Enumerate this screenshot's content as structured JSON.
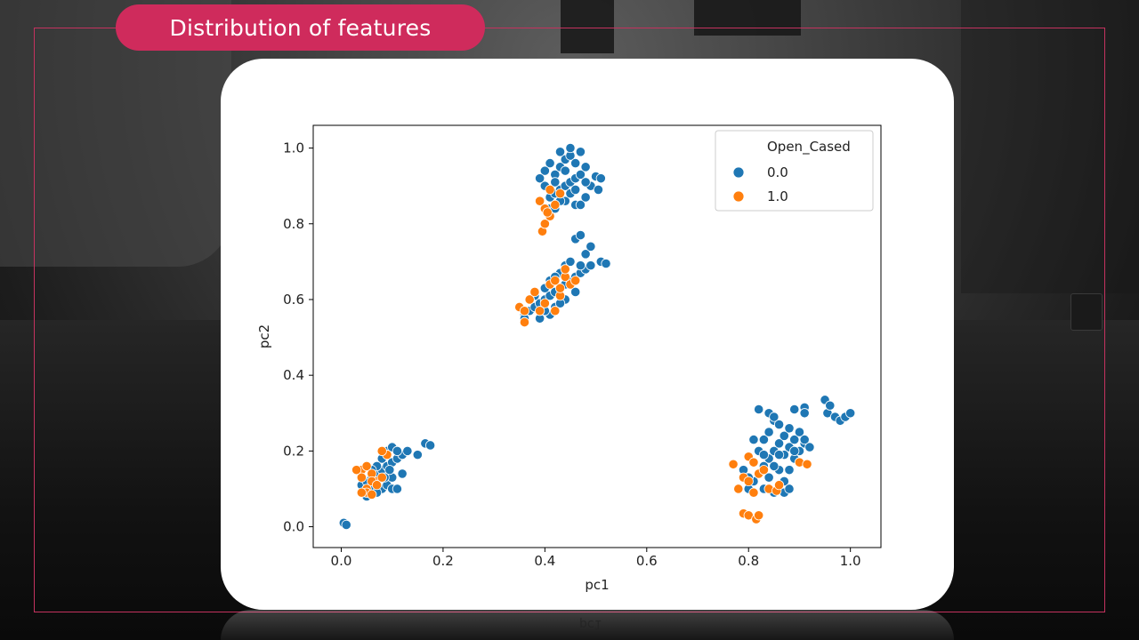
{
  "header": {
    "title": "Distribution of features"
  },
  "chart_data": {
    "type": "scatter",
    "xlabel": "pc1",
    "ylabel": "pc2",
    "xlim": [
      -0.055,
      1.06
    ],
    "ylim": [
      -0.055,
      1.06
    ],
    "xticks": [
      "0.0",
      "0.2",
      "0.4",
      "0.6",
      "0.8",
      "1.0"
    ],
    "yticks": [
      "0.0",
      "0.2",
      "0.4",
      "0.6",
      "0.8",
      "1.0"
    ],
    "legend": {
      "title": "Open_Cased",
      "position": "top-right"
    },
    "series": [
      {
        "name": "0.0",
        "color": "#1f77b4",
        "points": [
          [
            0.005,
            0.01
          ],
          [
            0.01,
            0.005
          ],
          [
            0.04,
            0.11
          ],
          [
            0.05,
            0.12
          ],
          [
            0.06,
            0.13
          ],
          [
            0.07,
            0.14
          ],
          [
            0.08,
            0.15
          ],
          [
            0.09,
            0.16
          ],
          [
            0.1,
            0.17
          ],
          [
            0.11,
            0.18
          ],
          [
            0.12,
            0.19
          ],
          [
            0.09,
            0.2
          ],
          [
            0.1,
            0.21
          ],
          [
            0.11,
            0.2
          ],
          [
            0.08,
            0.18
          ],
          [
            0.07,
            0.16
          ],
          [
            0.06,
            0.1
          ],
          [
            0.08,
            0.1
          ],
          [
            0.09,
            0.11
          ],
          [
            0.1,
            0.1
          ],
          [
            0.11,
            0.1
          ],
          [
            0.05,
            0.08
          ],
          [
            0.07,
            0.09
          ],
          [
            0.12,
            0.14
          ],
          [
            0.13,
            0.2
          ],
          [
            0.15,
            0.19
          ],
          [
            0.165,
            0.22
          ],
          [
            0.175,
            0.215
          ],
          [
            0.1,
            0.13
          ],
          [
            0.06,
            0.15
          ],
          [
            0.085,
            0.13
          ],
          [
            0.095,
            0.15
          ],
          [
            0.36,
            0.56
          ],
          [
            0.37,
            0.57
          ],
          [
            0.38,
            0.58
          ],
          [
            0.39,
            0.59
          ],
          [
            0.4,
            0.6
          ],
          [
            0.41,
            0.61
          ],
          [
            0.42,
            0.62
          ],
          [
            0.43,
            0.63
          ],
          [
            0.44,
            0.64
          ],
          [
            0.45,
            0.65
          ],
          [
            0.46,
            0.66
          ],
          [
            0.47,
            0.67
          ],
          [
            0.48,
            0.68
          ],
          [
            0.39,
            0.55
          ],
          [
            0.41,
            0.56
          ],
          [
            0.42,
            0.58
          ],
          [
            0.4,
            0.63
          ],
          [
            0.41,
            0.65
          ],
          [
            0.43,
            0.67
          ],
          [
            0.44,
            0.69
          ],
          [
            0.45,
            0.7
          ],
          [
            0.47,
            0.69
          ],
          [
            0.38,
            0.61
          ],
          [
            0.36,
            0.55
          ],
          [
            0.42,
            0.66
          ],
          [
            0.44,
            0.6
          ],
          [
            0.46,
            0.62
          ],
          [
            0.43,
            0.59
          ],
          [
            0.4,
            0.57
          ],
          [
            0.37,
            0.6
          ],
          [
            0.46,
            0.76
          ],
          [
            0.47,
            0.77
          ],
          [
            0.48,
            0.72
          ],
          [
            0.49,
            0.74
          ],
          [
            0.51,
            0.7
          ],
          [
            0.52,
            0.695
          ],
          [
            0.49,
            0.69
          ],
          [
            0.41,
            0.87
          ],
          [
            0.42,
            0.88
          ],
          [
            0.43,
            0.89
          ],
          [
            0.44,
            0.9
          ],
          [
            0.45,
            0.91
          ],
          [
            0.46,
            0.92
          ],
          [
            0.47,
            0.93
          ],
          [
            0.42,
            0.93
          ],
          [
            0.43,
            0.95
          ],
          [
            0.44,
            0.97
          ],
          [
            0.45,
            0.98
          ],
          [
            0.46,
            0.96
          ],
          [
            0.47,
            0.99
          ],
          [
            0.43,
            0.99
          ],
          [
            0.45,
            1.0
          ],
          [
            0.44,
            0.86
          ],
          [
            0.46,
            0.85
          ],
          [
            0.47,
            0.85
          ],
          [
            0.48,
            0.87
          ],
          [
            0.49,
            0.9
          ],
          [
            0.5,
            0.925
          ],
          [
            0.51,
            0.92
          ],
          [
            0.505,
            0.89
          ],
          [
            0.48,
            0.95
          ],
          [
            0.4,
            0.9
          ],
          [
            0.41,
            0.84
          ],
          [
            0.44,
            0.94
          ],
          [
            0.42,
            0.91
          ],
          [
            0.45,
            0.88
          ],
          [
            0.46,
            0.89
          ],
          [
            0.48,
            0.91
          ],
          [
            0.43,
            0.86
          ],
          [
            0.41,
            0.96
          ],
          [
            0.4,
            0.94
          ],
          [
            0.39,
            0.92
          ],
          [
            0.42,
            0.84
          ],
          [
            0.8,
            0.1
          ],
          [
            0.81,
            0.12
          ],
          [
            0.82,
            0.14
          ],
          [
            0.83,
            0.16
          ],
          [
            0.84,
            0.18
          ],
          [
            0.85,
            0.2
          ],
          [
            0.86,
            0.22
          ],
          [
            0.87,
            0.24
          ],
          [
            0.88,
            0.21
          ],
          [
            0.89,
            0.23
          ],
          [
            0.9,
            0.25
          ],
          [
            0.91,
            0.22
          ],
          [
            0.83,
            0.23
          ],
          [
            0.84,
            0.25
          ],
          [
            0.85,
            0.28
          ],
          [
            0.86,
            0.27
          ],
          [
            0.84,
            0.3
          ],
          [
            0.85,
            0.29
          ],
          [
            0.82,
            0.31
          ],
          [
            0.81,
            0.23
          ],
          [
            0.82,
            0.2
          ],
          [
            0.84,
            0.13
          ],
          [
            0.85,
            0.09
          ],
          [
            0.86,
            0.1
          ],
          [
            0.87,
            0.12
          ],
          [
            0.88,
            0.15
          ],
          [
            0.89,
            0.18
          ],
          [
            0.9,
            0.2
          ],
          [
            0.91,
            0.23
          ],
          [
            0.92,
            0.21
          ],
          [
            0.87,
            0.09
          ],
          [
            0.88,
            0.1
          ],
          [
            0.83,
            0.1
          ],
          [
            0.86,
            0.15
          ],
          [
            0.87,
            0.19
          ],
          [
            0.89,
            0.31
          ],
          [
            0.91,
            0.315
          ],
          [
            0.91,
            0.3
          ],
          [
            0.95,
            0.335
          ],
          [
            0.955,
            0.3
          ],
          [
            0.96,
            0.32
          ],
          [
            0.97,
            0.29
          ],
          [
            0.98,
            0.28
          ],
          [
            0.99,
            0.29
          ],
          [
            1.0,
            0.3
          ],
          [
            0.79,
            0.15
          ],
          [
            0.8,
            0.13
          ],
          [
            0.83,
            0.19
          ],
          [
            0.85,
            0.16
          ],
          [
            0.88,
            0.26
          ],
          [
            0.86,
            0.19
          ],
          [
            0.9,
            0.17
          ],
          [
            0.89,
            0.2
          ]
        ]
      },
      {
        "name": "1.0",
        "color": "#ff7f0e",
        "points": [
          [
            0.04,
            0.15
          ],
          [
            0.05,
            0.16
          ],
          [
            0.06,
            0.14
          ],
          [
            0.04,
            0.13
          ],
          [
            0.07,
            0.12
          ],
          [
            0.05,
            0.1
          ],
          [
            0.06,
            0.12
          ],
          [
            0.08,
            0.13
          ],
          [
            0.09,
            0.19
          ],
          [
            0.08,
            0.2
          ],
          [
            0.07,
            0.11
          ],
          [
            0.05,
            0.09
          ],
          [
            0.04,
            0.09
          ],
          [
            0.06,
            0.085
          ],
          [
            0.03,
            0.15
          ],
          [
            0.35,
            0.58
          ],
          [
            0.36,
            0.57
          ],
          [
            0.37,
            0.6
          ],
          [
            0.38,
            0.62
          ],
          [
            0.4,
            0.59
          ],
          [
            0.42,
            0.57
          ],
          [
            0.43,
            0.61
          ],
          [
            0.44,
            0.66
          ],
          [
            0.45,
            0.64
          ],
          [
            0.46,
            0.65
          ],
          [
            0.43,
            0.63
          ],
          [
            0.44,
            0.68
          ],
          [
            0.36,
            0.54
          ],
          [
            0.41,
            0.64
          ],
          [
            0.42,
            0.65
          ],
          [
            0.39,
            0.57
          ],
          [
            0.395,
            0.78
          ],
          [
            0.4,
            0.8
          ],
          [
            0.41,
            0.82
          ],
          [
            0.4,
            0.84
          ],
          [
            0.39,
            0.86
          ],
          [
            0.42,
            0.85
          ],
          [
            0.43,
            0.88
          ],
          [
            0.41,
            0.89
          ],
          [
            0.405,
            0.83
          ],
          [
            0.77,
            0.165
          ],
          [
            0.79,
            0.13
          ],
          [
            0.8,
            0.12
          ],
          [
            0.81,
            0.09
          ],
          [
            0.82,
            0.14
          ],
          [
            0.83,
            0.15
          ],
          [
            0.84,
            0.1
          ],
          [
            0.855,
            0.095
          ],
          [
            0.86,
            0.11
          ],
          [
            0.9,
            0.17
          ],
          [
            0.915,
            0.165
          ],
          [
            0.78,
            0.1
          ],
          [
            0.79,
            0.035
          ],
          [
            0.8,
            0.03
          ],
          [
            0.815,
            0.02
          ],
          [
            0.82,
            0.03
          ],
          [
            0.8,
            0.185
          ],
          [
            0.81,
            0.17
          ]
        ]
      }
    ]
  }
}
